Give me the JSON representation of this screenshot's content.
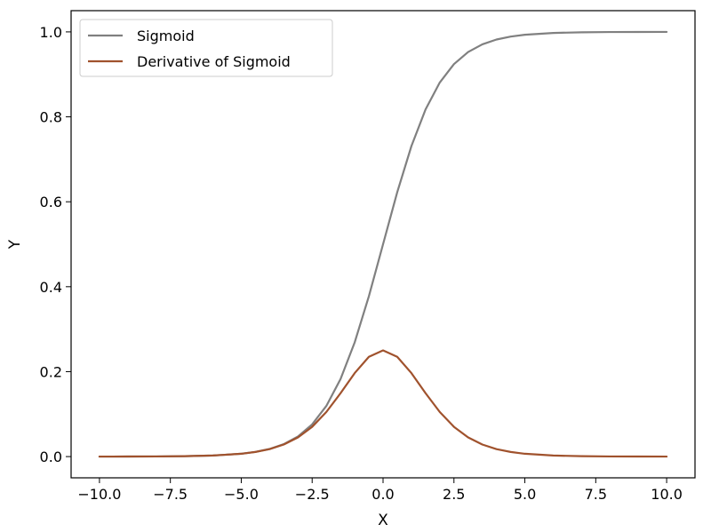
{
  "chart_data": {
    "type": "line",
    "title": "",
    "xlabel": "X",
    "ylabel": "Y",
    "xlim": [
      -11,
      11
    ],
    "ylim": [
      -0.05,
      1.05
    ],
    "xticks": [
      -10.0,
      -7.5,
      -5.0,
      -2.5,
      0.0,
      2.5,
      5.0,
      7.5,
      10.0
    ],
    "yticks": [
      0.0,
      0.2,
      0.4,
      0.6,
      0.8,
      1.0
    ],
    "xtick_labels": [
      "−10.0",
      "−7.5",
      "−5.0",
      "−2.5",
      "0.0",
      "2.5",
      "5.0",
      "7.5",
      "10.0"
    ],
    "ytick_labels": [
      "0.0",
      "0.2",
      "0.4",
      "0.6",
      "0.8",
      "1.0"
    ],
    "grid": false,
    "legend_position": "top-left",
    "series": [
      {
        "name": "Sigmoid",
        "color": "#808080",
        "x": [
          -10,
          -9,
          -8,
          -7,
          -6,
          -5,
          -4.5,
          -4,
          -3.5,
          -3,
          -2.5,
          -2,
          -1.5,
          -1,
          -0.5,
          0,
          0.5,
          1,
          1.5,
          2,
          2.5,
          3,
          3.5,
          4,
          4.5,
          5,
          6,
          7,
          8,
          9,
          10
        ],
        "y": [
          5e-05,
          0.00012,
          0.00034,
          0.00091,
          0.00247,
          0.00669,
          0.01099,
          0.01799,
          0.02931,
          0.04743,
          0.07586,
          0.1192,
          0.18243,
          0.26894,
          0.37754,
          0.5,
          0.62246,
          0.73106,
          0.81757,
          0.8808,
          0.92414,
          0.95257,
          0.97069,
          0.98201,
          0.98901,
          0.99331,
          0.99753,
          0.99909,
          0.99966,
          0.99988,
          0.99995
        ]
      },
      {
        "name": "Derivative of Sigmoid",
        "color": "#a0522d",
        "x": [
          -10,
          -9,
          -8,
          -7,
          -6,
          -5,
          -4.5,
          -4,
          -3.5,
          -3,
          -2.5,
          -2,
          -1.5,
          -1,
          -0.5,
          0,
          0.5,
          1,
          1.5,
          2,
          2.5,
          3,
          3.5,
          4,
          4.5,
          5,
          6,
          7,
          8,
          9,
          10
        ],
        "y": [
          5e-05,
          0.00012,
          0.00034,
          0.00091,
          0.00247,
          0.00665,
          0.01087,
          0.01766,
          0.02845,
          0.04518,
          0.07011,
          0.10499,
          0.14915,
          0.19661,
          0.235,
          0.25,
          0.235,
          0.19661,
          0.14915,
          0.10499,
          0.07011,
          0.04518,
          0.02845,
          0.01766,
          0.01087,
          0.00665,
          0.00247,
          0.00091,
          0.00034,
          0.00012,
          5e-05
        ]
      }
    ]
  }
}
